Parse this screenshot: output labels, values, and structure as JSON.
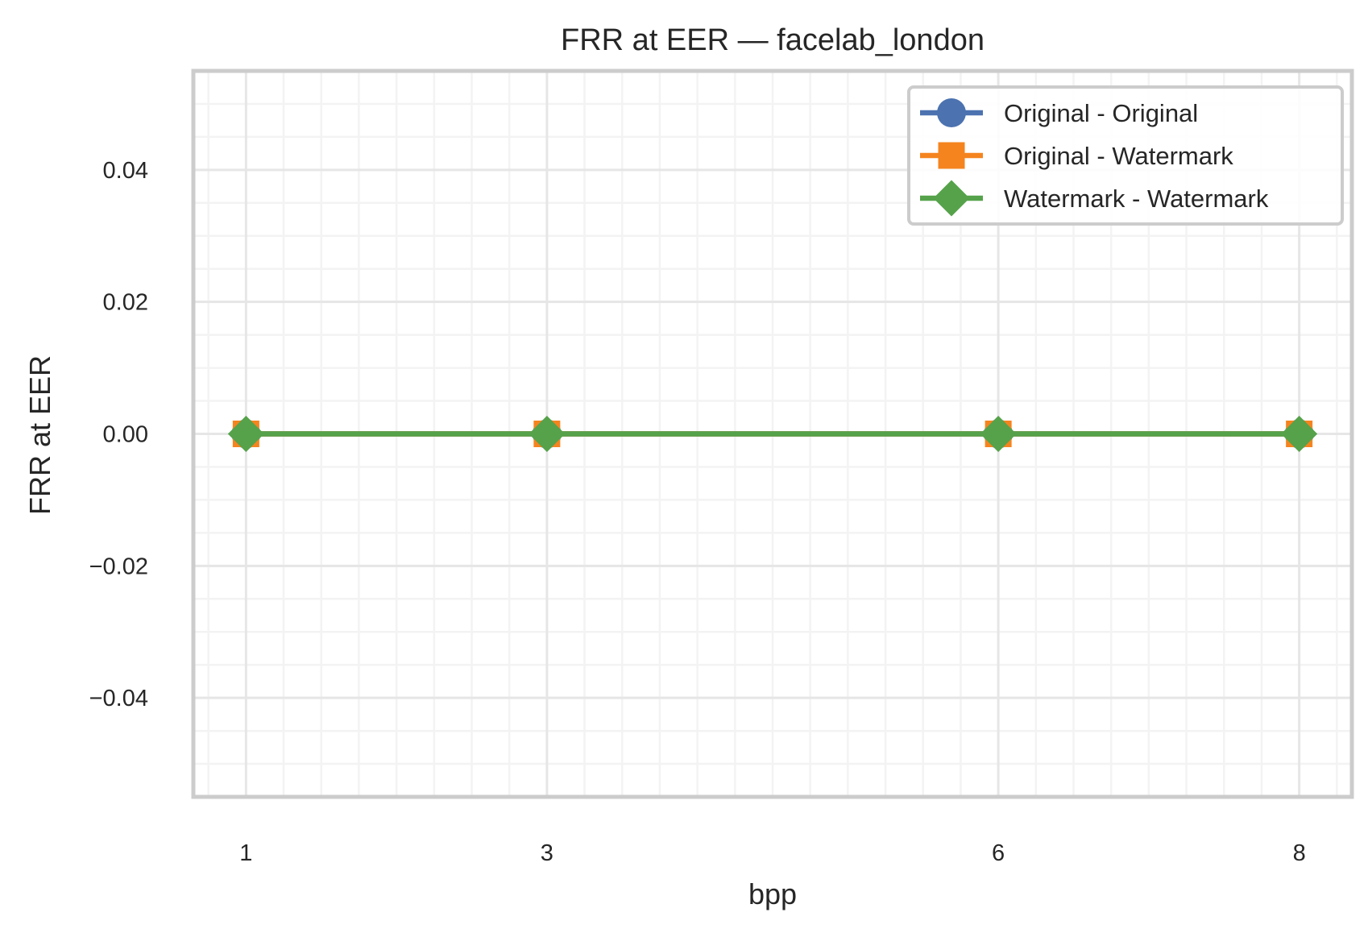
{
  "chart_data": {
    "type": "line",
    "title": "FRR at EER — facelab_london",
    "xlabel": "bpp",
    "ylabel": "FRR at EER",
    "x": [
      1,
      3,
      6,
      8
    ],
    "x_ticks": [
      1,
      3,
      6,
      8
    ],
    "xlim": [
      0.65,
      8.35
    ],
    "y_ticks": [
      "0.04",
      "0.02",
      "0.00",
      "−0.02",
      "−0.04"
    ],
    "y_tick_values": [
      0.04,
      0.02,
      0.0,
      -0.02,
      -0.04
    ],
    "ylim": [
      -0.055,
      0.055
    ],
    "grid": true,
    "legend_position": "top-right",
    "series": [
      {
        "name": "Original - Original",
        "values": [
          0,
          0,
          0,
          0
        ],
        "color": "#4c72b0",
        "marker": "circle"
      },
      {
        "name": "Original - Watermark",
        "values": [
          0,
          0,
          0,
          0
        ],
        "color": "#f5841f",
        "marker": "square"
      },
      {
        "name": "Watermark - Watermark",
        "values": [
          0,
          0,
          0,
          0
        ],
        "color": "#55a24a",
        "marker": "diamond"
      }
    ]
  }
}
